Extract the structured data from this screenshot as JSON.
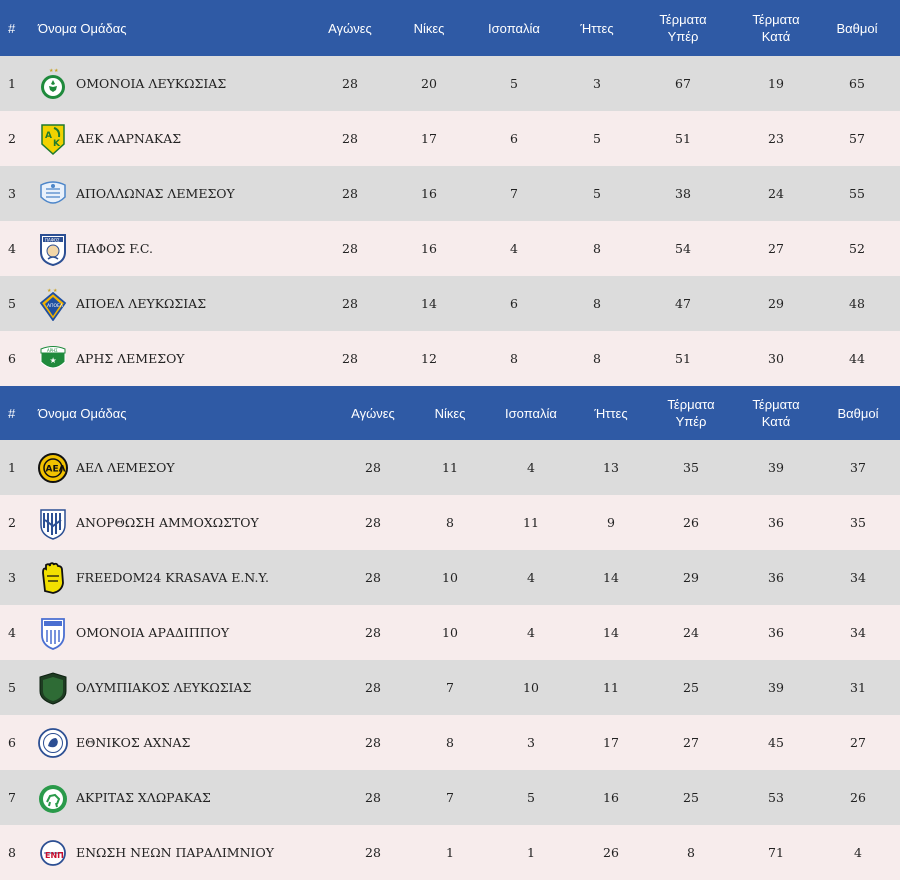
{
  "table1": {
    "headers": {
      "pos": "#",
      "team": "Όνομα Ομάδας",
      "played": "Αγώνες",
      "wins": "Νίκες",
      "draws": "Ισοπαλία",
      "losses": "Ήττες",
      "gf_line1": "Τέρματα",
      "gf_line2": "Υπέρ",
      "ga_line1": "Τέρματα",
      "ga_line2": "Κατά",
      "points": "Βαθμοί"
    },
    "rows": [
      {
        "pos": "1",
        "team": "ΟΜΟΝΟΙΑ ΛΕΥΚΩΣΙΑΣ",
        "played": "28",
        "wins": "20",
        "draws": "5",
        "losses": "3",
        "gf": "67",
        "ga": "19",
        "points": "65"
      },
      {
        "pos": "2",
        "team": "ΑΕΚ ΛΑΡΝΑΚΑΣ",
        "played": "28",
        "wins": "17",
        "draws": "6",
        "losses": "5",
        "gf": "51",
        "ga": "23",
        "points": "57"
      },
      {
        "pos": "3",
        "team": "ΑΠΟΛΛΩΝΑΣ ΛΕΜΕΣΟΥ",
        "played": "28",
        "wins": "16",
        "draws": "7",
        "losses": "5",
        "gf": "38",
        "ga": "24",
        "points": "55"
      },
      {
        "pos": "4",
        "team": "ΠΑΦΟΣ F.C.",
        "played": "28",
        "wins": "16",
        "draws": "4",
        "losses": "8",
        "gf": "54",
        "ga": "27",
        "points": "52"
      },
      {
        "pos": "5",
        "team": "ΑΠΟΕΛ ΛΕΥΚΩΣΙΑΣ",
        "played": "28",
        "wins": "14",
        "draws": "6",
        "losses": "8",
        "gf": "47",
        "ga": "29",
        "points": "48"
      },
      {
        "pos": "6",
        "team": "ΑΡΗΣ ΛΕΜΕΣΟΥ",
        "played": "28",
        "wins": "12",
        "draws": "8",
        "losses": "8",
        "gf": "51",
        "ga": "30",
        "points": "44"
      }
    ]
  },
  "table2": {
    "headers": {
      "pos": "#",
      "team": "Όνομα Ομάδας",
      "played": "Αγώνες",
      "wins": "Νίκες",
      "draws": "Ισοπαλία",
      "losses": "Ήττες",
      "gf_line1": "Τέρματα",
      "gf_line2": "Υπέρ",
      "ga_line1": "Τέρματα",
      "ga_line2": "Κατά",
      "points": "Βαθμοί"
    },
    "rows": [
      {
        "pos": "1",
        "team": "ΑΕΛ ΛΕΜΕΣΟΥ",
        "played": "28",
        "wins": "11",
        "draws": "4",
        "losses": "13",
        "gf": "35",
        "ga": "39",
        "points": "37"
      },
      {
        "pos": "2",
        "team": "ΑΝΟΡΘΩΣΗ ΑΜΜΟΧΩΣΤΟΥ",
        "played": "28",
        "wins": "8",
        "draws": "11",
        "losses": "9",
        "gf": "26",
        "ga": "36",
        "points": "35"
      },
      {
        "pos": "3",
        "team": "FREEDOM24 KRASAVA E.N.Y.",
        "played": "28",
        "wins": "10",
        "draws": "4",
        "losses": "14",
        "gf": "29",
        "ga": "36",
        "points": "34"
      },
      {
        "pos": "4",
        "team": "ΟΜΟΝΟΙΑ ΑΡΑΔΙΠΠΟΥ",
        "played": "28",
        "wins": "10",
        "draws": "4",
        "losses": "14",
        "gf": "24",
        "ga": "36",
        "points": "34"
      },
      {
        "pos": "5",
        "team": "ΟΛΥΜΠΙΑΚΟΣ ΛΕΥΚΩΣΙΑΣ",
        "played": "28",
        "wins": "7",
        "draws": "10",
        "losses": "11",
        "gf": "25",
        "ga": "39",
        "points": "31"
      },
      {
        "pos": "6",
        "team": "ΕΘΝΙΚΟΣ ΑΧΝΑΣ",
        "played": "28",
        "wins": "8",
        "draws": "3",
        "losses": "17",
        "gf": "27",
        "ga": "45",
        "points": "27"
      },
      {
        "pos": "7",
        "team": "ΑΚΡΙΤΑΣ ΧΛΩΡΑΚΑΣ",
        "played": "28",
        "wins": "7",
        "draws": "5",
        "losses": "16",
        "gf": "25",
        "ga": "53",
        "points": "26"
      },
      {
        "pos": "8",
        "team": "ΕΝΩΣΗ ΝΕΩΝ ΠΑΡΑΛΙΜΝΙΟΥ",
        "played": "28",
        "wins": "1",
        "draws": "1",
        "losses": "26",
        "gf": "8",
        "ga": "71",
        "points": "4"
      }
    ]
  },
  "colors": {
    "header_bg": "#2f5aa5",
    "header_text": "#ffffff",
    "row_odd": "#dcdcdc",
    "row_even": "#f7ecec"
  },
  "icons": {
    "table1": [
      "omonoia-crest-icon",
      "aek-crest-icon",
      "apollon-crest-icon",
      "pafos-crest-icon",
      "apoel-crest-icon",
      "aris-crest-icon"
    ],
    "table2": [
      "ael-crest-icon",
      "anorthosis-crest-icon",
      "krasava-crest-icon",
      "omonoia-aradippou-crest-icon",
      "olympiakos-crest-icon",
      "ethnikos-crest-icon",
      "akritas-crest-icon",
      "enp-crest-icon"
    ]
  }
}
